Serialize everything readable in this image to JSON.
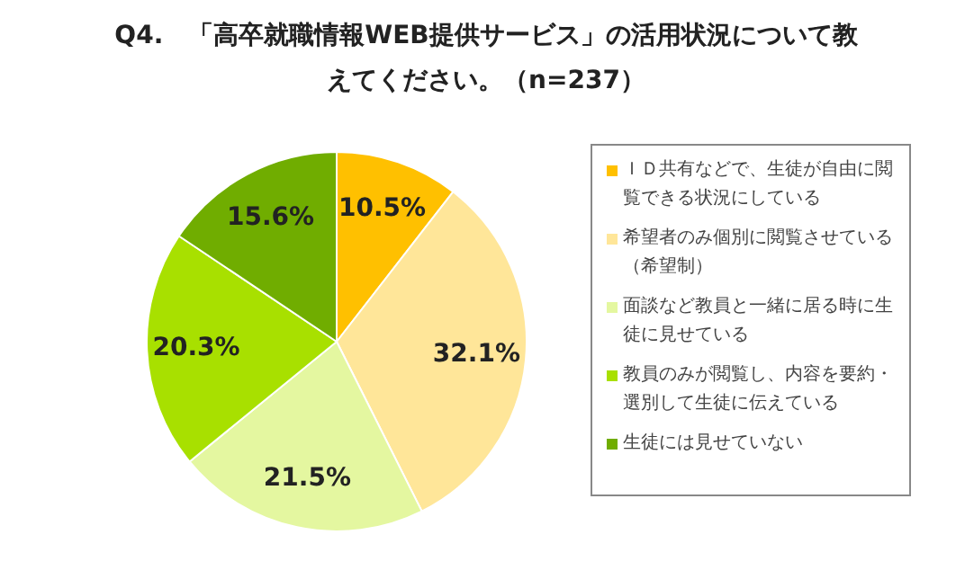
{
  "chart_data": {
    "type": "pie",
    "title": "Q4.　「高卒就職情報WEB提供サービス」の活用状況について教えてください。（n=237）",
    "categories": [
      "ＩＤ共有などで、生徒が自由に閲覧できる状況にしている",
      "希望者のみ個別に閲覧させている（希望制）",
      "面談など教員と一緒に居る時に生徒に見せている",
      "教員のみが閲覧し、内容を要約・選別して生徒に伝えている",
      "生徒には見せていない"
    ],
    "values": [
      10.5,
      32.1,
      21.5,
      20.3,
      15.6
    ],
    "colors": [
      "#ffc000",
      "#ffe699",
      "#e4f7a0",
      "#a8e000",
      "#70ad00"
    ],
    "value_labels": [
      "10.5%",
      "32.1%",
      "21.5%",
      "20.3%",
      "15.6%"
    ],
    "legend": "right"
  }
}
